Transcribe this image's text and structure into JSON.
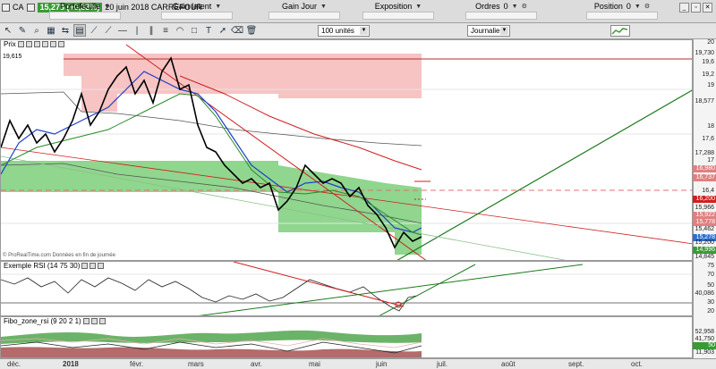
{
  "header": {
    "price": "15,278 (+0,33%)",
    "instrument": "20 juin 2018 CARREFOUR",
    "ticker": "CA"
  },
  "stats": [
    {
      "label": "Portefeuille"
    },
    {
      "label": "Gain latent"
    },
    {
      "label": "Gain Jour"
    },
    {
      "label": "Exposition"
    },
    {
      "label": "Ordres",
      "value": "0"
    },
    {
      "label": "Position",
      "value": "0"
    }
  ],
  "toolbar": {
    "quantity": "100 unités",
    "period": "Journalier"
  },
  "price_panel": {
    "title": "Prix",
    "last_label": "19,615",
    "source_note": "© ProRealTime.com Données en fin de journée",
    "axis_labels": [
      "20",
      "19,730",
      "19,6",
      "19,2",
      "19",
      "18,577",
      "18",
      "17,6",
      "17,288",
      "17",
      "16,980",
      "16,737",
      "16,4",
      "16,200",
      "15,966",
      "15,922",
      "15,778",
      "15,462",
      "15,278",
      "15,200",
      "14,996",
      "14,845"
    ]
  },
  "rsi_panel": {
    "title": "Exemple RSI (14 75 30)",
    "axis_labels": [
      "75",
      "70",
      "50",
      "40,086",
      "30",
      "20"
    ]
  },
  "fibo_panel": {
    "title": "Fibo_zone_rsi (9 20 2 1)",
    "axis_labels": [
      "52,958",
      "41,750",
      "50",
      "11,903"
    ]
  },
  "dates": [
    "déc.",
    "2018",
    "févr.",
    "mars",
    "avr.",
    "mai",
    "juin",
    "juil.",
    "août",
    "sept.",
    "oct."
  ],
  "colors": {
    "bull": "#3a9a35",
    "bear": "#d01f1f",
    "resistance_fill": "#f6b8b8",
    "support_fill": "#7ccf7a"
  },
  "chart_data": {
    "type": "line",
    "title": "CARREFOUR",
    "series": [],
    "ylim": [
      14.845,
      20
    ],
    "x": [
      "déc.",
      "2018",
      "févr.",
      "mars",
      "avr.",
      "mai",
      "juin",
      "juil.",
      "août",
      "sept.",
      "oct."
    ]
  }
}
